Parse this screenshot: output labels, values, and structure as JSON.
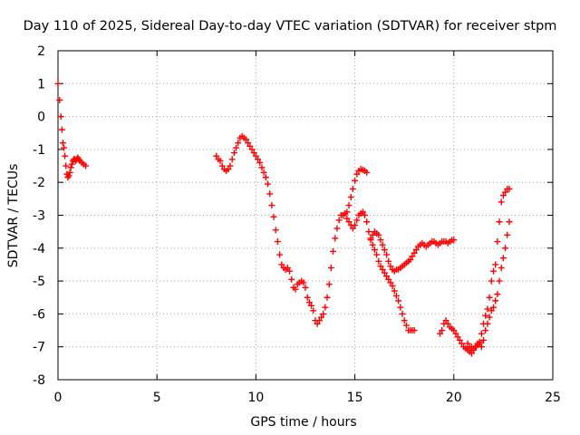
{
  "chart_data": {
    "type": "scatter",
    "title": "Day 110 of 2025, Sidereal Day-to-day VTEC variation (SDTVAR) for receiver stpm",
    "xlabel": "GPS time / hours",
    "ylabel": "SDTVAR / TECUs",
    "xlim": [
      0,
      25
    ],
    "ylim": [
      -8,
      2
    ],
    "xticks": [
      "0",
      "5",
      "10",
      "15",
      "20",
      "25"
    ],
    "yticks": [
      "-8",
      "-7",
      "-6",
      "-5",
      "-4",
      "-3",
      "-2",
      "-1",
      "0",
      "1",
      "2"
    ],
    "grid": true,
    "marker": "plus",
    "color": "#ff0000",
    "series": [
      {
        "segments": [
          {
            "x": [
              0.0,
              0.08,
              0.15,
              0.2,
              0.25,
              0.3,
              0.35,
              0.4,
              0.45,
              0.5,
              0.55,
              0.6,
              0.65,
              0.7,
              0.75,
              0.8,
              0.85,
              0.9,
              0.95,
              1.0,
              1.05,
              1.1,
              1.2,
              1.3,
              1.4
            ],
            "y": [
              1.0,
              0.5,
              0.0,
              -0.4,
              -0.8,
              -0.95,
              -1.2,
              -1.5,
              -1.75,
              -1.85,
              -1.8,
              -1.7,
              -1.55,
              -1.45,
              -1.35,
              -1.3,
              -1.3,
              -1.35,
              -1.3,
              -1.25,
              -1.3,
              -1.35,
              -1.4,
              -1.45,
              -1.5
            ]
          },
          {
            "x": [
              8.0,
              8.1,
              8.2,
              8.3,
              8.4,
              8.5,
              8.6,
              8.7,
              8.8,
              8.9,
              9.0,
              9.1,
              9.2,
              9.3,
              9.4,
              9.5,
              9.6,
              9.7,
              9.8,
              9.9,
              10.0,
              10.1,
              10.2,
              10.3,
              10.4,
              10.5,
              10.6,
              10.7,
              10.8,
              10.9,
              11.0,
              11.1,
              11.2,
              11.3,
              11.4,
              11.5,
              11.6,
              11.7,
              11.8,
              11.9,
              12.0,
              12.1,
              12.2,
              12.3,
              12.4,
              12.5,
              12.6,
              12.7,
              12.8,
              12.9,
              13.0,
              13.1,
              13.2,
              13.3,
              13.4,
              13.5,
              13.6,
              13.7,
              13.8,
              13.9,
              14.0,
              14.1,
              14.2,
              14.3,
              14.4,
              14.5,
              14.6,
              14.7,
              14.8,
              14.9,
              15.0,
              15.1,
              15.2,
              15.3,
              15.4,
              15.5,
              15.6
            ],
            "y": [
              -1.2,
              -1.3,
              -1.35,
              -1.5,
              -1.6,
              -1.65,
              -1.6,
              -1.5,
              -1.3,
              -1.1,
              -0.95,
              -0.8,
              -0.65,
              -0.6,
              -0.65,
              -0.7,
              -0.8,
              -0.9,
              -1.0,
              -1.1,
              -1.2,
              -1.3,
              -1.4,
              -1.55,
              -1.7,
              -1.85,
              -2.05,
              -2.35,
              -2.7,
              -3.05,
              -3.45,
              -3.8,
              -4.2,
              -4.5,
              -4.6,
              -4.65,
              -4.6,
              -4.7,
              -4.95,
              -5.2,
              -5.25,
              -5.1,
              -5.05,
              -5.0,
              -5.05,
              -5.2,
              -5.5,
              -5.65,
              -5.75,
              -5.9,
              -6.2,
              -6.3,
              -6.2,
              -6.1,
              -6.0,
              -5.8,
              -5.5,
              -5.1,
              -4.6,
              -4.1,
              -3.7,
              -3.4,
              -3.15,
              -3.0,
              -3.0,
              -2.95,
              -2.9,
              -2.7,
              -2.45,
              -2.2,
              -1.95,
              -1.75,
              -1.65,
              -1.6,
              -1.62,
              -1.65,
              -1.7
            ]
          },
          {
            "x": [
              14.6,
              14.7,
              14.8,
              14.9,
              15.0,
              15.1,
              15.2,
              15.3,
              15.4,
              15.5,
              15.6,
              15.7,
              15.8,
              15.9,
              16.0,
              16.1,
              16.2,
              16.3,
              16.4,
              16.5,
              16.6,
              16.7,
              16.8,
              16.9,
              17.0,
              17.1,
              17.2,
              17.3,
              17.4,
              17.5,
              17.6,
              17.7,
              17.8,
              17.9,
              18.0
            ],
            "y": [
              -3.1,
              -3.2,
              -3.3,
              -3.4,
              -3.3,
              -3.15,
              -3.0,
              -2.95,
              -2.9,
              -3.0,
              -3.2,
              -3.5,
              -3.75,
              -3.9,
              -4.05,
              -4.2,
              -4.4,
              -4.55,
              -4.65,
              -4.75,
              -4.85,
              -4.95,
              -5.05,
              -5.15,
              -5.3,
              -5.45,
              -5.6,
              -5.8,
              -6.0,
              -6.2,
              -6.35,
              -6.5,
              -6.5,
              -6.5,
              -6.5
            ]
          },
          {
            "x": [
              15.8,
              15.9,
              16.0,
              16.1,
              16.2,
              16.3,
              16.4,
              16.5,
              16.6,
              16.7,
              16.8,
              16.9,
              17.0,
              17.1,
              17.2,
              17.3,
              17.4,
              17.5,
              17.6,
              17.7,
              17.8,
              17.9,
              18.0,
              18.1,
              18.2,
              18.3,
              18.4,
              18.5,
              18.6,
              18.7,
              18.8,
              18.9,
              19.0,
              19.1,
              19.2,
              19.3,
              19.4,
              19.5,
              19.6,
              19.7,
              19.8,
              19.9,
              20.0
            ],
            "y": [
              -3.7,
              -3.6,
              -3.5,
              -3.55,
              -3.6,
              -3.75,
              -3.9,
              -4.05,
              -4.2,
              -4.4,
              -4.55,
              -4.65,
              -4.7,
              -4.65,
              -4.65,
              -4.6,
              -4.55,
              -4.5,
              -4.45,
              -4.4,
              -4.35,
              -4.25,
              -4.15,
              -4.05,
              -3.95,
              -3.9,
              -3.85,
              -3.9,
              -3.95,
              -3.9,
              -3.85,
              -3.8,
              -3.8,
              -3.85,
              -3.9,
              -3.85,
              -3.8,
              -3.8,
              -3.8,
              -3.85,
              -3.8,
              -3.75,
              -3.75
            ]
          },
          {
            "x": [
              19.3,
              19.4,
              19.5,
              19.6,
              19.7,
              19.8,
              19.9,
              20.0,
              20.1,
              20.2,
              20.3,
              20.4,
              20.5,
              20.6,
              20.7,
              20.8,
              20.9,
              21.0,
              21.1,
              21.2,
              21.3,
              21.4,
              21.5,
              21.6,
              21.7,
              21.8,
              21.9,
              22.0,
              22.1,
              22.2,
              22.3,
              22.4,
              22.5,
              22.6,
              22.7,
              22.8
            ],
            "y": [
              -6.6,
              -6.5,
              -6.3,
              -6.2,
              -6.3,
              -6.4,
              -6.45,
              -6.5,
              -6.6,
              -6.7,
              -6.8,
              -6.9,
              -7.0,
              -7.05,
              -7.1,
              -7.15,
              -7.2,
              -7.1,
              -7.0,
              -6.95,
              -6.85,
              -6.6,
              -6.3,
              -6.05,
              -5.85,
              -5.5,
              -5.0,
              -4.7,
              -4.5,
              -3.8,
              -3.2,
              -2.6,
              -2.4,
              -2.3,
              -2.2,
              -2.2
            ]
          },
          {
            "x": [
              20.7,
              20.8,
              20.9,
              21.0,
              21.1,
              21.2,
              21.3,
              21.4,
              21.5,
              21.6,
              21.7,
              21.8,
              21.9,
              22.0,
              22.1,
              22.2,
              22.3,
              22.4,
              22.5,
              22.6,
              22.7,
              22.8
            ],
            "y": [
              -6.9,
              -7.0,
              -7.0,
              -7.05,
              -7.0,
              -6.9,
              -6.9,
              -7.0,
              -6.8,
              -6.5,
              -6.3,
              -6.1,
              -5.9,
              -5.8,
              -5.6,
              -5.4,
              -5.0,
              -4.6,
              -4.3,
              -4.0,
              -3.6,
              -3.2
            ]
          }
        ]
      }
    ]
  }
}
